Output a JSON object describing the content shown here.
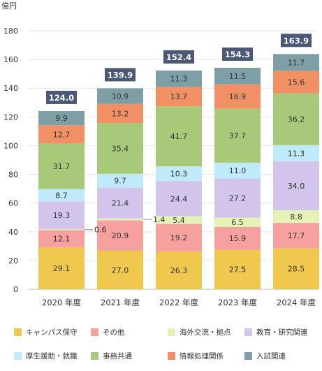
{
  "chart_data": {
    "type": "bar",
    "stacked": true,
    "unit_label": "億円",
    "categories": [
      "2020 年度",
      "2021 年度",
      "2022 年度",
      "2023 年度",
      "2024 年度"
    ],
    "ylim": [
      0,
      180
    ],
    "yticks": [
      0,
      20,
      40,
      60,
      80,
      100,
      120,
      140,
      160,
      180
    ],
    "grid": true,
    "legend_position": "bottom",
    "series": [
      {
        "name": "キャンパス保守",
        "color": "#F0C84E",
        "values": [
          29.1,
          27.0,
          26.3,
          27.5,
          28.5
        ]
      },
      {
        "name": "その他",
        "color": "#F7A0A0",
        "values": [
          12.1,
          20.9,
          19.2,
          15.9,
          17.7
        ]
      },
      {
        "name": "海外交流・拠点",
        "color": "#E4F2B6",
        "values": [
          0.6,
          1.4,
          5.4,
          6.5,
          8.8
        ]
      },
      {
        "name": "教育・研究関連",
        "color": "#D3C4EC",
        "values": [
          19.3,
          21.4,
          24.4,
          27.2,
          34.0
        ]
      },
      {
        "name": "厚生援助・就職",
        "color": "#BFEAFA",
        "values": [
          8.7,
          9.7,
          10.3,
          11.0,
          11.3
        ]
      },
      {
        "name": "事務共通",
        "color": "#A8C97A",
        "values": [
          31.7,
          35.4,
          41.7,
          37.7,
          36.2
        ]
      },
      {
        "name": "情報処理関係",
        "color": "#F09064",
        "values": [
          12.7,
          13.2,
          13.7,
          16.9,
          15.6
        ]
      },
      {
        "name": "入試関連",
        "color": "#7F9FA6",
        "values": [
          9.9,
          10.9,
          11.3,
          11.5,
          11.7
        ]
      }
    ],
    "totals": [
      124.0,
      139.9,
      152.4,
      154.3,
      163.9
    ],
    "total_color": "#4B5878"
  }
}
